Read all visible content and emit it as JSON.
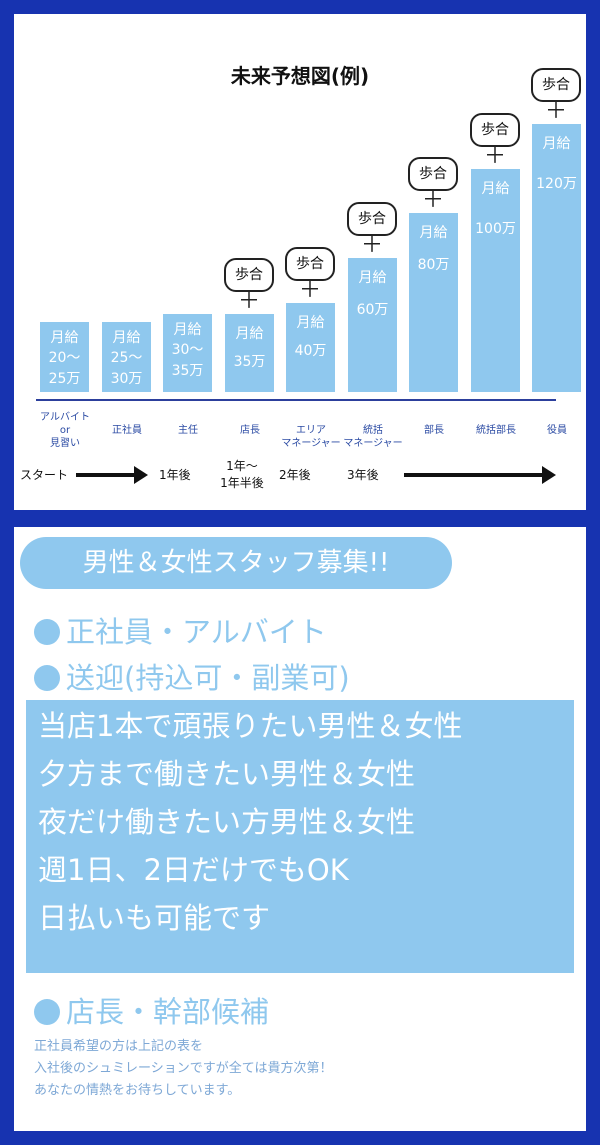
{
  "chart": {
    "title": "未来予想図(例)",
    "bars": [
      {
        "line1": "月給",
        "line2": "20〜",
        "line3": "25万",
        "salary_max": 25,
        "bonus": false
      },
      {
        "line1": "月給",
        "line2": "25〜",
        "line3": "30万",
        "salary_max": 30,
        "bonus": false
      },
      {
        "line1": "月給",
        "line2": "30〜",
        "line3": "35万",
        "salary_max": 35,
        "bonus": false
      },
      {
        "line1": "月給",
        "line2": "",
        "line3": "35万",
        "salary_max": 35,
        "bonus": true
      },
      {
        "line1": "月給",
        "line2": "",
        "line3": "40万",
        "salary_max": 40,
        "bonus": true
      },
      {
        "line1": "月給",
        "line2": "",
        "line3": "60万",
        "salary_max": 60,
        "bonus": true
      },
      {
        "line1": "月給",
        "line2": "",
        "line3": "80万",
        "salary_max": 80,
        "bonus": true
      },
      {
        "line1": "月給",
        "line2": "",
        "line3": "100万",
        "salary_max": 100,
        "bonus": true
      },
      {
        "line1": "月給",
        "line2": "",
        "line3": "120万",
        "salary_max": 120,
        "bonus": true
      }
    ],
    "bonus_label": "歩合",
    "bonus_plus": "＋",
    "positions": [
      "アルバイト\nor\n見習い",
      "正社員",
      "主任",
      "店長",
      "エリア\nマネージャー",
      "統括\nマネージャー",
      "部長",
      "統括部長",
      "役員"
    ],
    "timeline": {
      "start": "スタート",
      "t1": "1年後",
      "t2_line1": "1年〜",
      "t2_line2": "1年半後",
      "t3": "2年後",
      "t4": "3年後"
    }
  },
  "recruit": {
    "heading": "男性＆女性スタッフ募集!!",
    "bullet1": "正社員・アルバイト",
    "bullet2": "送迎(持込可・副業可)",
    "box_lines": [
      "当店1本で頑張りたい男性＆女性",
      "夕方まで働きたい男性＆女性",
      "夜だけ働きたい方男性＆女性",
      "週1日、2日だけでもOK",
      "日払いも可能です"
    ],
    "bullet3": "店長・幹部候補",
    "notes": [
      "正社員希望の方は上記の表を",
      "入社後のシュミレーションですが全ては貴方次第！",
      "あなたの情熱をお待ちしています。"
    ]
  },
  "colors": {
    "accent": "#8fc8ee",
    "frame": "#1733b0"
  }
}
